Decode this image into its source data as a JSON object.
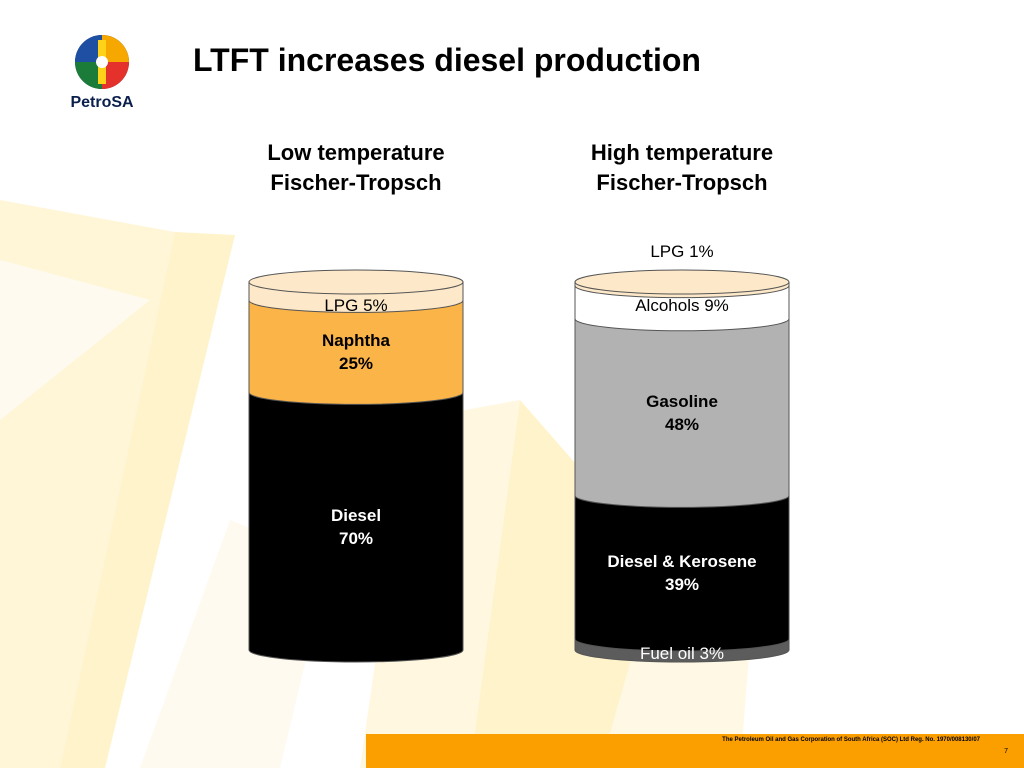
{
  "slide": {
    "title": "LTFT increases diesel production",
    "logo_text": "PetroSA",
    "colors": {
      "background_rays": "#fff7dc",
      "footer_bar": "#fb9e00"
    }
  },
  "columns": [
    {
      "heading_line1": "Low temperature",
      "heading_line2": "Fischer-Tropsch",
      "segments": [
        {
          "name": "LPG",
          "label": "LPG 5%",
          "percent": 5,
          "color": "#fde9c9",
          "text_color": "#000000",
          "bold": false
        },
        {
          "name": "Naphtha",
          "line1": "Naphtha",
          "line2": "25%",
          "percent": 25,
          "color": "#fbb447",
          "text_color": "#000000",
          "bold": true
        },
        {
          "name": "Diesel",
          "line1": "Diesel",
          "line2": "70%",
          "percent": 70,
          "color": "#000000",
          "text_color": "#ffffff",
          "bold": true
        }
      ]
    },
    {
      "heading_line1": "High temperature",
      "heading_line2": "Fischer-Tropsch",
      "segments": [
        {
          "name": "LPG",
          "label": "LPG 1%",
          "percent": 1,
          "color": "#fde9c9",
          "text_color": "#000000",
          "bold": false,
          "outside": true
        },
        {
          "name": "Alcohols",
          "label": "Alcohols 9%",
          "percent": 9,
          "color": "#ffffff",
          "text_color": "#000000",
          "bold": false
        },
        {
          "name": "Gasoline",
          "line1": "Gasoline",
          "line2": "48%",
          "percent": 48,
          "color": "#b2b2b2",
          "text_color": "#000000",
          "bold": true
        },
        {
          "name": "Diesel & Kerosene",
          "line1": "Diesel & Kerosene",
          "line2": "39%",
          "percent": 39,
          "color": "#000000",
          "text_color": "#ffffff",
          "bold": true
        },
        {
          "name": "Fuel oil",
          "label": "Fuel oil 3%",
          "percent": 3,
          "color": "#5c5c5c",
          "text_color": "#ffffff",
          "bold": false
        }
      ]
    }
  ],
  "footer": {
    "company": "The Petroleum Oil and Gas Corporation of South Africa (SOC) Ltd   Reg. No. 1970/008130/07",
    "page_number": "7"
  }
}
